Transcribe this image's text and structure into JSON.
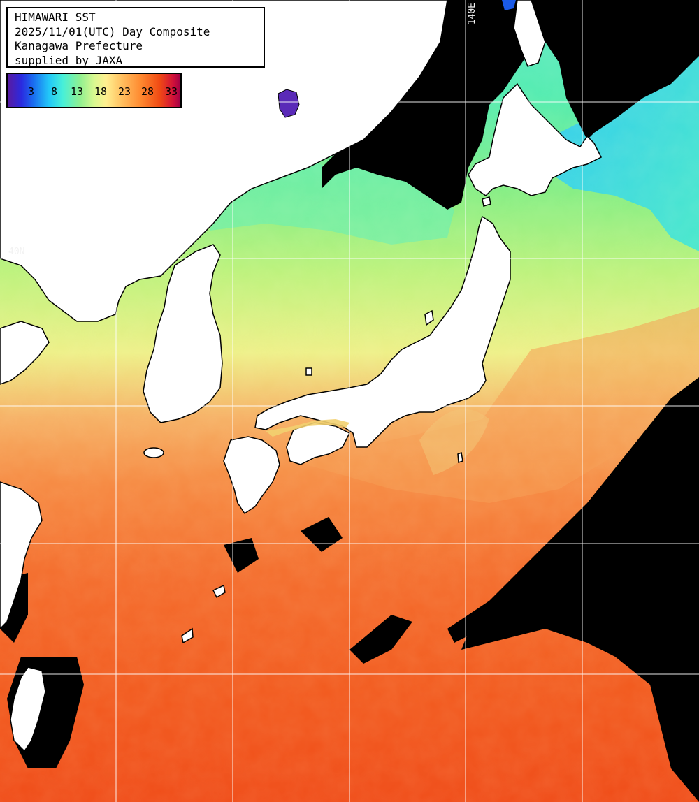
{
  "title_lines": [
    "HIMAWARI SST",
    "2025/11/01(UTC) Day Composite",
    "Kanagawa Prefecture",
    "supplied by JAXA"
  ],
  "legend": {
    "ticks": [
      "3",
      "8",
      "13",
      "18",
      "23",
      "28",
      "33"
    ]
  },
  "grid_labels": {
    "longitude": "140E",
    "latitude": "40N"
  },
  "colors": {
    "land": "#ffffff",
    "no_data": "#000000",
    "grid": "#ffffff",
    "coast": "#000000"
  }
}
